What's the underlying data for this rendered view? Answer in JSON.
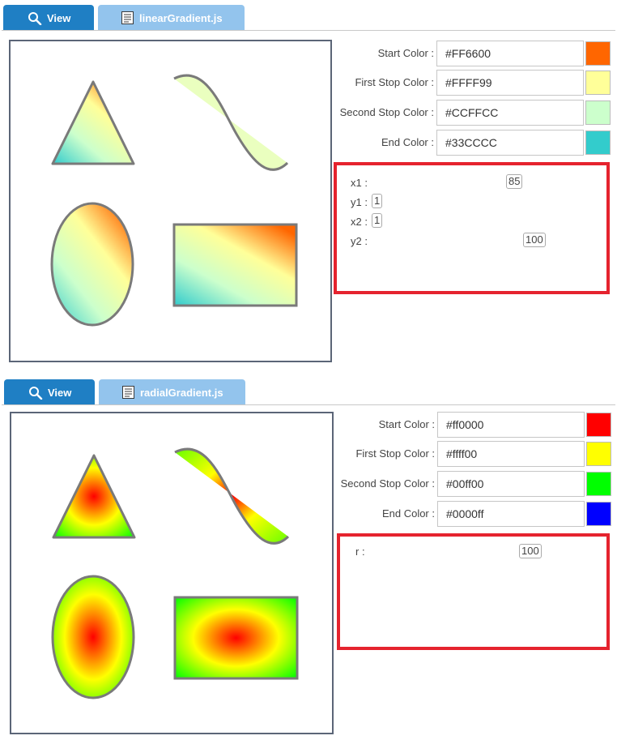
{
  "section1": {
    "tabs": {
      "view": "View",
      "file": "linearGradient.js"
    },
    "colors": [
      {
        "label": "Start Color :",
        "value": "#FF6600",
        "swatch": "#FF6600"
      },
      {
        "label": "First Stop Color :",
        "value": "#FFFF99",
        "swatch": "#FFFF99"
      },
      {
        "label": "Second Stop Color :",
        "value": "#CCFFCC",
        "swatch": "#CCFFCC"
      },
      {
        "label": "End Color :",
        "value": "#33CCCC",
        "swatch": "#33CCCC"
      }
    ],
    "params": [
      {
        "label": "x1 :",
        "value": "85"
      },
      {
        "label": "y1 :",
        "value": "1"
      },
      {
        "label": "x2 :",
        "value": "1"
      },
      {
        "label": "y2 :",
        "value": "100"
      }
    ]
  },
  "section2": {
    "tabs": {
      "view": "View",
      "file": "radialGradient.js"
    },
    "colors": [
      {
        "label": "Start Color :",
        "value": "#ff0000",
        "swatch": "#ff0000"
      },
      {
        "label": "First Stop Color :",
        "value": "#ffff00",
        "swatch": "#ffff00"
      },
      {
        "label": "Second Stop Color :",
        "value": "#00ff00",
        "swatch": "#00ff00"
      },
      {
        "label": "End Color :",
        "value": "#0000ff",
        "swatch": "#0000ff"
      }
    ],
    "params": [
      {
        "label": "r :",
        "value": "100"
      }
    ]
  },
  "theme": {
    "tab_active": "#1f7fc4",
    "tab_inactive": "#93c4ed",
    "highlight_border": "#e5232e",
    "canvas_border": "#5b6577",
    "shape_stroke": "#7a7a7a"
  }
}
